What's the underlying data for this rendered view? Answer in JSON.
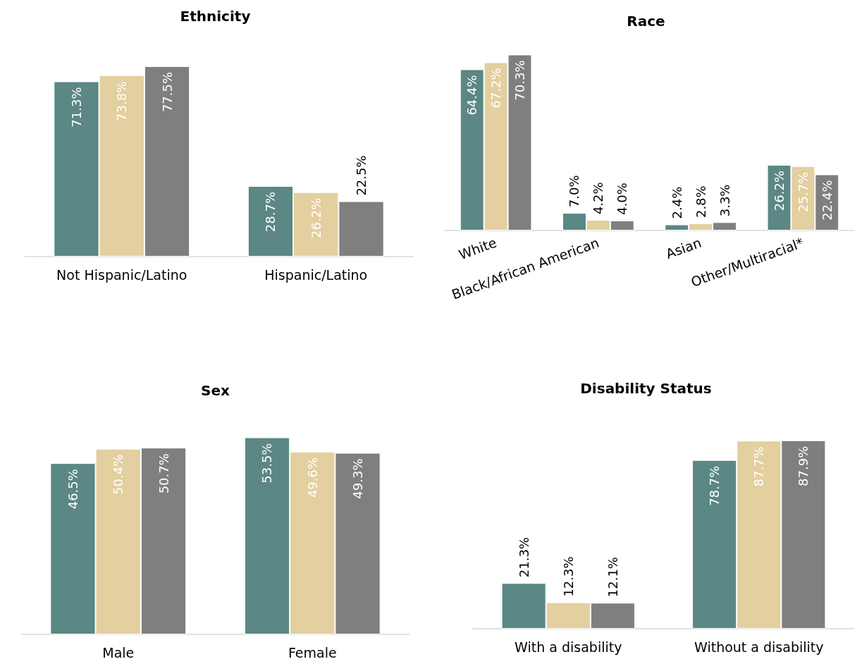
{
  "chart_data": [
    {
      "type": "bar",
      "title": "Ethnicity",
      "categories": [
        "Not Hispanic/Latino",
        "Hispanic/Latino"
      ],
      "series": [
        {
          "color": "#5b8784",
          "values": [
            71.3,
            28.7
          ],
          "value_labels": [
            "71.3%",
            "28.7%"
          ]
        },
        {
          "color": "#e3cf9f",
          "values": [
            73.8,
            26.2
          ],
          "value_labels": [
            "73.8%",
            "26.2%"
          ]
        },
        {
          "color": "#7f7f7f",
          "values": [
            77.5,
            22.5
          ],
          "value_labels": [
            "77.5%",
            "22.5%"
          ]
        }
      ]
    },
    {
      "type": "bar",
      "title": "Race",
      "categories": [
        "White",
        "Black/African American",
        "Asian",
        "Other/Multiracial*"
      ],
      "series": [
        {
          "color": "#5b8784",
          "values": [
            64.4,
            7.0,
            2.4,
            26.2
          ],
          "value_labels": [
            "64.4%",
            "7.0%",
            "2.4%",
            "26.2%"
          ]
        },
        {
          "color": "#e3cf9f",
          "values": [
            67.2,
            4.2,
            2.8,
            25.7
          ],
          "value_labels": [
            "67.2%",
            "4.2%",
            "2.8%",
            "25.7%"
          ]
        },
        {
          "color": "#7f7f7f",
          "values": [
            70.3,
            4.0,
            3.3,
            22.4
          ],
          "value_labels": [
            "70.3%",
            "4.0%",
            "3.3%",
            "22.4%"
          ]
        }
      ]
    },
    {
      "type": "bar",
      "title": "Sex",
      "categories": [
        "Male",
        "Female"
      ],
      "series": [
        {
          "color": "#5b8784",
          "values": [
            46.5,
            53.5
          ],
          "value_labels": [
            "46.5%",
            "53.5%"
          ]
        },
        {
          "color": "#e3cf9f",
          "values": [
            50.4,
            49.6
          ],
          "value_labels": [
            "50.4%",
            "49.6%"
          ]
        },
        {
          "color": "#7f7f7f",
          "values": [
            50.7,
            49.3
          ],
          "value_labels": [
            "50.7%",
            "49.3%"
          ]
        }
      ]
    },
    {
      "type": "bar",
      "title": "Disability Status",
      "categories": [
        "With a disability",
        "Without a disability"
      ],
      "series": [
        {
          "color": "#5b8784",
          "values": [
            21.3,
            78.7
          ],
          "value_labels": [
            "21.3%",
            "78.7%"
          ]
        },
        {
          "color": "#e3cf9f",
          "values": [
            12.3,
            87.7
          ],
          "value_labels": [
            "12.3%",
            "87.7%"
          ]
        },
        {
          "color": "#7f7f7f",
          "values": [
            12.1,
            87.9
          ],
          "value_labels": [
            "12.1%",
            "87.9%"
          ]
        }
      ]
    }
  ]
}
